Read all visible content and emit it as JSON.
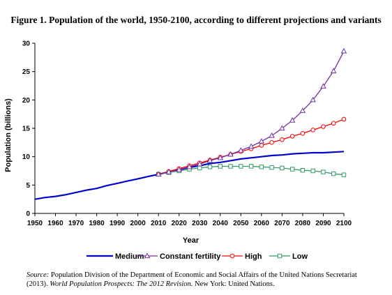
{
  "chart_data": {
    "type": "line",
    "title": "Figure 1.  Population of the world, 1950-2100, according to different projections and variants",
    "xlabel": "Year",
    "ylabel": "Population (billions)",
    "xlim": [
      1950,
      2100
    ],
    "ylim": [
      0,
      30
    ],
    "x_ticks": [
      "1950",
      "1960",
      "1970",
      "1980",
      "1990",
      "2000",
      "2010",
      "2020",
      "2030",
      "2040",
      "2050",
      "2060",
      "2070",
      "2080",
      "2090",
      "2100"
    ],
    "y_ticks": [
      "0",
      "5",
      "10",
      "15",
      "20",
      "25",
      "30"
    ],
    "grid": false,
    "legend_position": "bottom",
    "series": [
      {
        "name": "Medium",
        "color": "#0000cc",
        "marker": "none",
        "x": [
          1950,
          1955,
          1960,
          1965,
          1970,
          1975,
          1980,
          1985,
          1990,
          1995,
          2000,
          2005,
          2010,
          2015,
          2020,
          2025,
          2030,
          2035,
          2040,
          2045,
          2050,
          2055,
          2060,
          2065,
          2070,
          2075,
          2080,
          2085,
          2090,
          2095,
          2100
        ],
        "values": [
          2.5,
          2.8,
          3.0,
          3.3,
          3.7,
          4.1,
          4.4,
          4.9,
          5.3,
          5.7,
          6.1,
          6.5,
          6.9,
          7.3,
          7.7,
          8.1,
          8.4,
          8.8,
          9.0,
          9.3,
          9.6,
          9.8,
          10.0,
          10.2,
          10.3,
          10.5,
          10.6,
          10.7,
          10.7,
          10.8,
          10.9
        ]
      },
      {
        "name": "Constant fertility",
        "color": "#7030a0",
        "marker": "triangle",
        "x": [
          2010,
          2015,
          2020,
          2025,
          2030,
          2035,
          2040,
          2045,
          2050,
          2055,
          2060,
          2065,
          2070,
          2075,
          2080,
          2085,
          2090,
          2095,
          2100
        ],
        "values": [
          6.9,
          7.3,
          7.7,
          8.2,
          8.7,
          9.3,
          9.8,
          10.4,
          11.1,
          11.8,
          12.7,
          13.7,
          15.0,
          16.4,
          18.1,
          20.0,
          22.4,
          25.1,
          28.6
        ]
      },
      {
        "name": "High",
        "color": "#ff0000",
        "marker": "circle",
        "x": [
          2010,
          2015,
          2020,
          2025,
          2030,
          2035,
          2040,
          2045,
          2050,
          2055,
          2060,
          2065,
          2070,
          2075,
          2080,
          2085,
          2090,
          2095,
          2100
        ],
        "values": [
          6.9,
          7.4,
          7.9,
          8.4,
          8.9,
          9.4,
          9.9,
          10.4,
          10.9,
          11.4,
          12.0,
          12.5,
          13.0,
          13.6,
          14.1,
          14.7,
          15.3,
          15.9,
          16.6
        ]
      },
      {
        "name": "Low",
        "color": "#339966",
        "marker": "square",
        "x": [
          2010,
          2015,
          2020,
          2025,
          2030,
          2035,
          2040,
          2045,
          2050,
          2055,
          2060,
          2065,
          2070,
          2075,
          2080,
          2085,
          2090,
          2095,
          2100
        ],
        "values": [
          6.9,
          7.2,
          7.5,
          7.8,
          8.0,
          8.2,
          8.3,
          8.3,
          8.3,
          8.3,
          8.2,
          8.1,
          8.0,
          7.8,
          7.6,
          7.5,
          7.3,
          7.0,
          6.8
        ]
      }
    ]
  },
  "source": {
    "prefix": "Source:",
    "line1": " Population Division of the Department of Economic and Social Affairs of the United Nations Secretariat",
    "line2_start": "(2013). ",
    "italic_title": "World Population Prospects: The 2012 Revision.",
    "line2_end": " New York: United Nations."
  }
}
